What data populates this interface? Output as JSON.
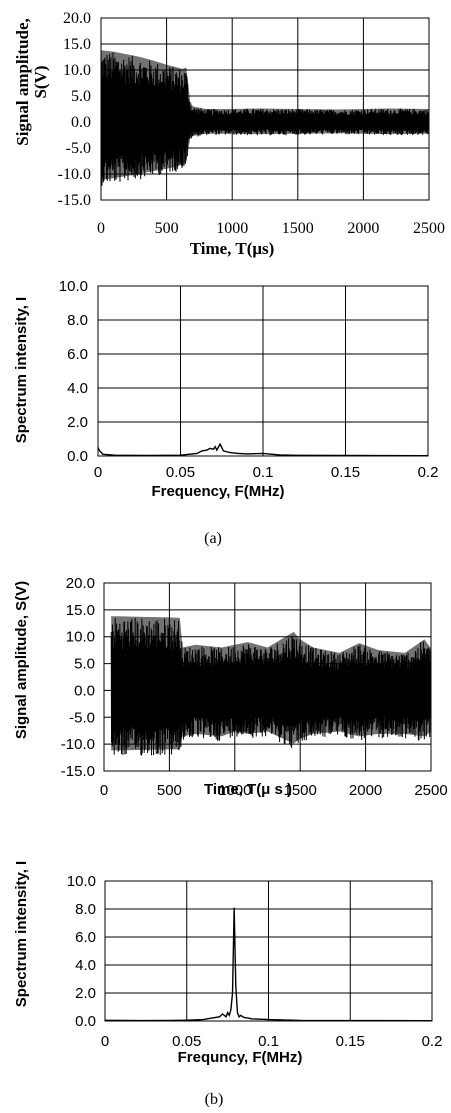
{
  "chart_data": [
    {
      "id": "a-time",
      "type": "line",
      "xlabel": "Time, T(μs)",
      "ylabel_lines": [
        "Signal amplitude,",
        "S(V)"
      ],
      "xlim": [
        0,
        2500
      ],
      "ylim": [
        -15,
        20
      ],
      "xticks": [
        0,
        500,
        1000,
        1500,
        2000,
        2500
      ],
      "xtick_labels": [
        "0",
        "500",
        "1000",
        "1500",
        "2000",
        "2500"
      ],
      "yticks": [
        20,
        15,
        10,
        5,
        0,
        -5,
        -10,
        -15
      ],
      "ytick_labels": [
        "20.0",
        "15.0",
        "10.0",
        "5.0",
        "0.0",
        "-5.0",
        "-10.0",
        "-15.0"
      ],
      "envelope": {
        "x": [
          0,
          100,
          200,
          300,
          400,
          500,
          580,
          620,
          650,
          680,
          700,
          800,
          1000,
          1200,
          1500,
          1800,
          2000,
          2200,
          2500
        ],
        "upper": [
          13.8,
          13.5,
          13.0,
          12.5,
          11.8,
          11.0,
          10.5,
          10.2,
          10.5,
          4.0,
          3.0,
          2.5,
          2.5,
          2.6,
          2.5,
          2.4,
          2.5,
          2.6,
          2.5
        ],
        "lower": [
          -12.3,
          -12.0,
          -11.5,
          -11.0,
          -10.5,
          -10.0,
          -9.5,
          -9.0,
          -8.5,
          -3.5,
          -3.0,
          -2.5,
          -2.5,
          -2.6,
          -2.5,
          -2.4,
          -2.5,
          -2.6,
          -2.5
        ]
      }
    },
    {
      "id": "a-spec",
      "type": "line",
      "xlabel": "Frequency, F(MHz)",
      "ylabel_lines": [
        "Spectrum intensity, I"
      ],
      "xlim": [
        0,
        0.2
      ],
      "ylim": [
        0,
        10
      ],
      "xticks": [
        0,
        0.05,
        0.1,
        0.15,
        0.2
      ],
      "xtick_labels": [
        "0",
        "0.05",
        "0.1",
        "0.15",
        "0.2"
      ],
      "yticks": [
        10,
        8,
        6,
        4,
        2,
        0
      ],
      "ytick_labels": [
        "10.0",
        "8.0",
        "6.0",
        "4.0",
        "2.0",
        "0.0"
      ],
      "x": [
        0,
        0.001,
        0.003,
        0.01,
        0.03,
        0.05,
        0.055,
        0.06,
        0.063,
        0.066,
        0.068,
        0.07,
        0.071,
        0.072,
        0.074,
        0.076,
        0.078,
        0.08,
        0.085,
        0.09,
        0.1,
        0.11,
        0.12,
        0.15,
        0.2
      ],
      "y": [
        0.5,
        0.3,
        0.1,
        0.05,
        0.03,
        0.05,
        0.1,
        0.15,
        0.3,
        0.35,
        0.45,
        0.4,
        0.55,
        0.35,
        0.7,
        0.3,
        0.25,
        0.2,
        0.15,
        0.12,
        0.15,
        0.06,
        0.04,
        0.03,
        0.02
      ]
    },
    {
      "id": "b-time",
      "type": "line",
      "xlabel": "Time, T(μ s )",
      "ylabel_lines": [
        "Signal amplitude, S(V)"
      ],
      "xlim": [
        0,
        2500
      ],
      "ylim": [
        -15,
        20
      ],
      "xticks": [
        0,
        500,
        1000,
        1500,
        2000,
        2500
      ],
      "xtick_labels": [
        "0",
        "500",
        "1000",
        "1500",
        "2000",
        "2500"
      ],
      "yticks": [
        20,
        15,
        10,
        5,
        0,
        -5,
        -10,
        -15
      ],
      "ytick_labels": [
        "20.0",
        "15.0",
        "10.0",
        "5.0",
        "0.0",
        "-5.0",
        "-10.0",
        "-15.0"
      ],
      "envelope": {
        "x": [
          55,
          100,
          300,
          500,
          580,
          600,
          700,
          900,
          1000,
          1100,
          1250,
          1450,
          1500,
          1600,
          1800,
          1950,
          2100,
          2300,
          2450,
          2500
        ],
        "upper": [
          13.8,
          13.8,
          13.7,
          13.6,
          13.5,
          8.0,
          8.5,
          8.0,
          8.5,
          9.0,
          8.0,
          10.9,
          9.5,
          8.0,
          7.0,
          8.8,
          7.5,
          7.0,
          9.5,
          7.8
        ],
        "lower": [
          -12.4,
          -12.4,
          -12.3,
          -12.2,
          -12.2,
          -9.5,
          -9.0,
          -9.5,
          -8.5,
          -9.0,
          -8.5,
          -11.0,
          -10.0,
          -9.0,
          -8.5,
          -9.5,
          -9.0,
          -9.0,
          -9.5,
          -8.5
        ]
      }
    },
    {
      "id": "b-spec",
      "type": "line",
      "xlabel": "Frequncy, F(MHz)",
      "ylabel_lines": [
        "Spectrum intensity, I"
      ],
      "xlim": [
        0,
        0.2
      ],
      "ylim": [
        0,
        10
      ],
      "xticks": [
        0,
        0.05,
        0.1,
        0.15,
        0.2
      ],
      "xtick_labels": [
        "0",
        "0.05",
        "0.1",
        "0.15",
        "0.2"
      ],
      "yticks": [
        10,
        8,
        6,
        4,
        2,
        0
      ],
      "ytick_labels": [
        "10.0",
        "8.0",
        "6.0",
        "4.0",
        "2.0",
        "0.0"
      ],
      "x": [
        0,
        0.02,
        0.04,
        0.05,
        0.06,
        0.065,
        0.07,
        0.072,
        0.074,
        0.075,
        0.076,
        0.077,
        0.078,
        0.079,
        0.08,
        0.081,
        0.082,
        0.083,
        0.085,
        0.088,
        0.09,
        0.1,
        0.12,
        0.15,
        0.2
      ],
      "y": [
        0.05,
        0.03,
        0.04,
        0.06,
        0.1,
        0.2,
        0.3,
        0.5,
        0.3,
        0.6,
        0.4,
        0.8,
        2.0,
        8.1,
        2.5,
        0.6,
        0.3,
        0.4,
        0.25,
        0.2,
        0.15,
        0.1,
        0.04,
        0.03,
        0.02
      ]
    }
  ],
  "captions": [
    "(a)",
    "(b)"
  ]
}
